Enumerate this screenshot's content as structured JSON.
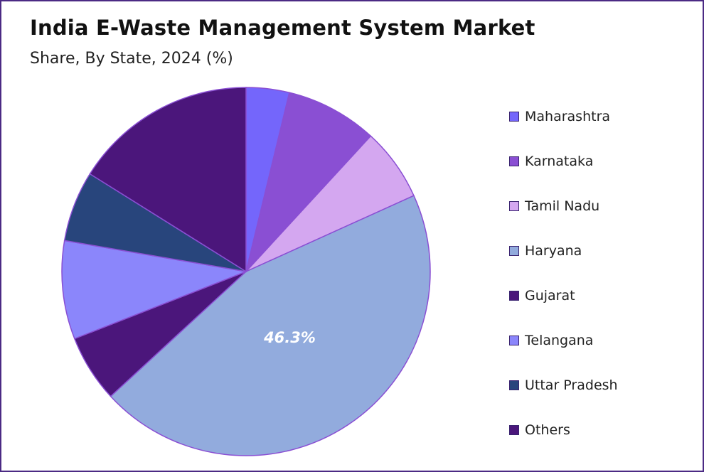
{
  "chart_data": {
    "type": "pie",
    "title": "India E-Waste Management System Market",
    "subtitle": "Share, By State, 2024 (%)",
    "legend_position": "right",
    "slices": [
      {
        "name": "Maharashtra",
        "value": 3.9,
        "color": "#7466fb"
      },
      {
        "name": "Karnataka",
        "value": 8.3,
        "color": "#8a4fd3"
      },
      {
        "name": "Tamil Nadu",
        "value": 6.6,
        "color": "#d4a7f0"
      },
      {
        "name": "Haryana",
        "value": 46.3,
        "color": "#92abdd",
        "label": "46.3%"
      },
      {
        "name": "Gujarat",
        "value": 6.1,
        "color": "#4b167b"
      },
      {
        "name": "Telangana",
        "value": 8.9,
        "color": "#8b86fb"
      },
      {
        "name": "Uttar Pradesh",
        "value": 6.4,
        "color": "#28457c"
      },
      {
        "name": "Others",
        "value": 16.6,
        "color": "#4b167b"
      }
    ]
  }
}
